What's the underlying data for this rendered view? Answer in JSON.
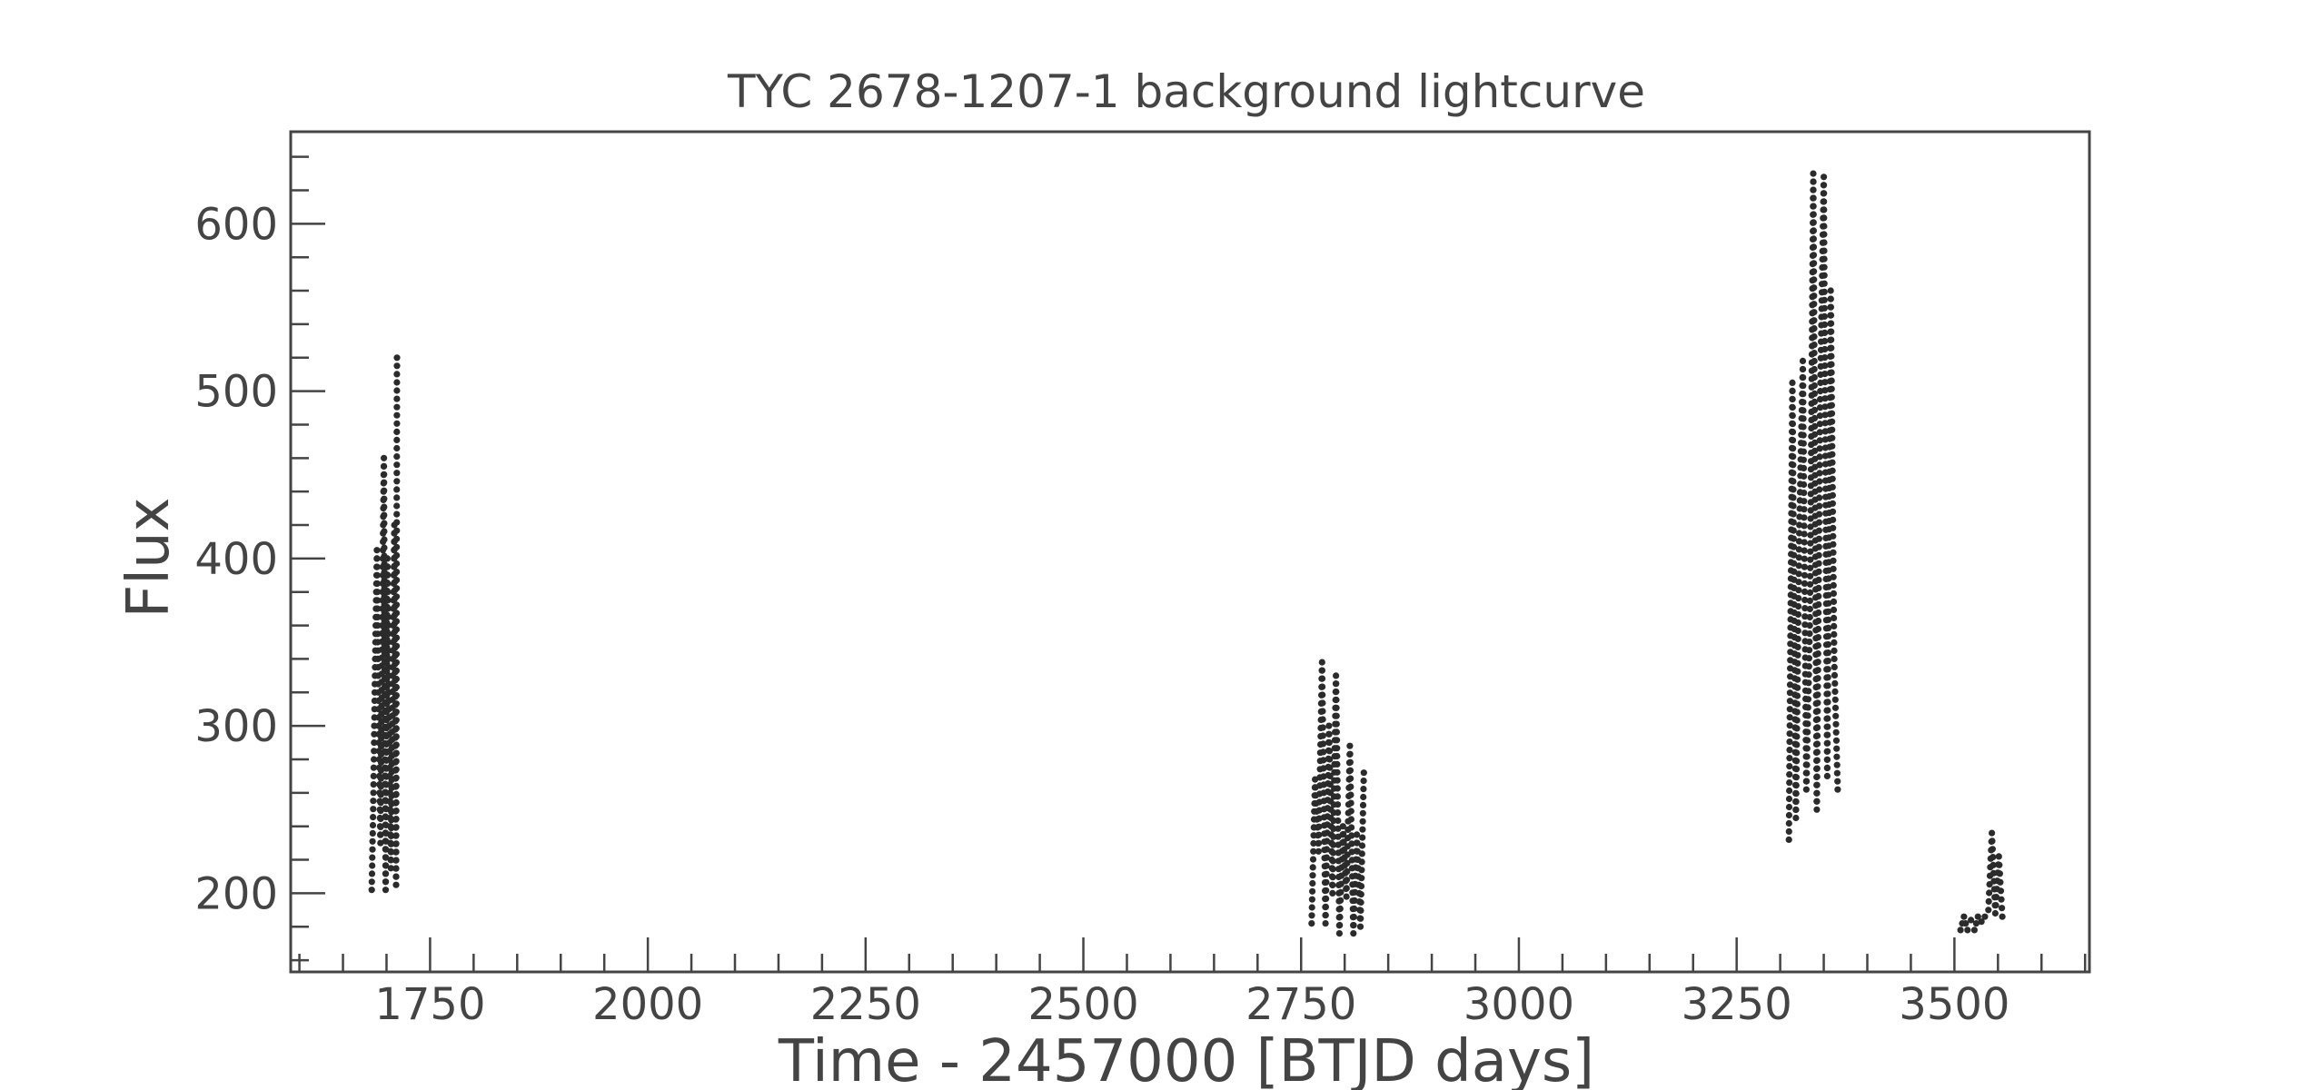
{
  "chart_data": {
    "type": "scatter",
    "title": "TYC 2678-1207-1 background lightcurve",
    "xlabel": "Time - 2457000 [BTJD days]",
    "ylabel": "Flux",
    "xlim": [
      1590,
      3655
    ],
    "ylim": [
      153,
      655
    ],
    "xticks": [
      1750,
      2000,
      2250,
      2500,
      2750,
      3000,
      3250,
      3500
    ],
    "yticks": [
      200,
      300,
      400,
      500,
      600
    ],
    "grid": false,
    "marker_color": "#2b2b2b",
    "frame_color": "#444444",
    "segments": [
      {
        "x": [
          1683,
          1685,
          1687,
          1689,
          1691,
          1693,
          1695,
          1697,
          1699,
          1701,
          1703,
          1705,
          1707,
          1709,
          1711,
          1712
        ],
        "y": [
          202,
          260,
          340,
          405,
          300,
          230,
          360,
          460,
          202,
          400,
          305,
          215,
          330,
          420,
          205,
          520
        ]
      },
      {
        "x": [
          2762,
          2766,
          2770,
          2774,
          2778,
          2782,
          2786,
          2790,
          2794,
          2798,
          2802,
          2806,
          2810,
          2814,
          2818,
          2822
        ],
        "y": [
          182,
          268,
          225,
          338,
          182,
          300,
          200,
          330,
          176,
          240,
          198,
          288,
          176,
          235,
          180,
          272
        ]
      },
      {
        "x": [
          3310,
          3314,
          3318,
          3322,
          3326,
          3330,
          3334,
          3338,
          3342,
          3346,
          3350,
          3354,
          3358,
          3362,
          3366
        ],
        "y": [
          232,
          505,
          245,
          420,
          518,
          262,
          360,
          630,
          250,
          500,
          628,
          270,
          560,
          340,
          262
        ]
      },
      {
        "x": [
          3507,
          3511,
          3515,
          3519,
          3523,
          3527,
          3531,
          3535,
          3539,
          3543,
          3547,
          3551,
          3555
        ],
        "y": [
          178,
          186,
          178,
          184,
          178,
          186,
          183,
          186,
          190,
          236,
          188,
          222,
          186
        ]
      }
    ]
  }
}
